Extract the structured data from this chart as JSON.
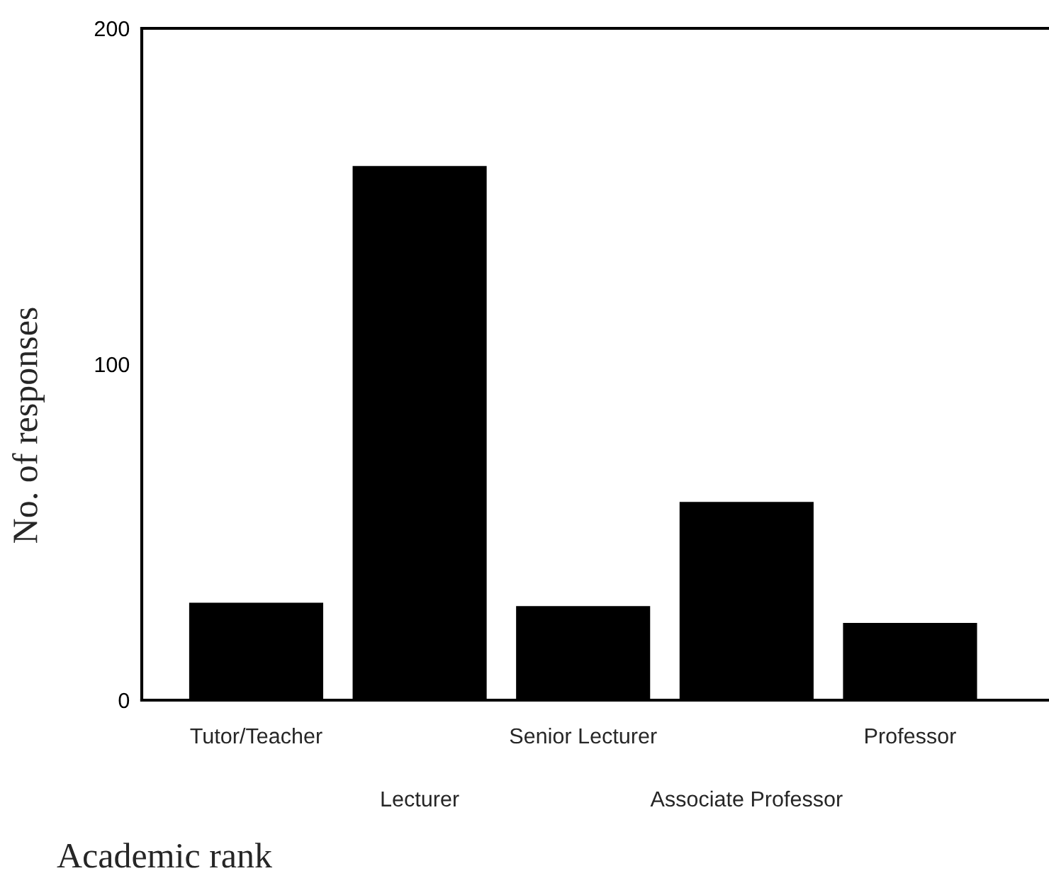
{
  "chart_data": {
    "type": "bar",
    "categories": [
      "Tutor/Teacher",
      "Lecturer",
      "Senior Lecturer",
      "Associate Professor",
      "Professor"
    ],
    "values": [
      29,
      159,
      28,
      59,
      23
    ],
    "color": "#000000",
    "xlabel": "Academic rank",
    "ylabel": "No. of responses",
    "ylim": [
      0,
      200
    ],
    "yticks": [
      0,
      100,
      200
    ],
    "grid": false,
    "legend": false
  }
}
